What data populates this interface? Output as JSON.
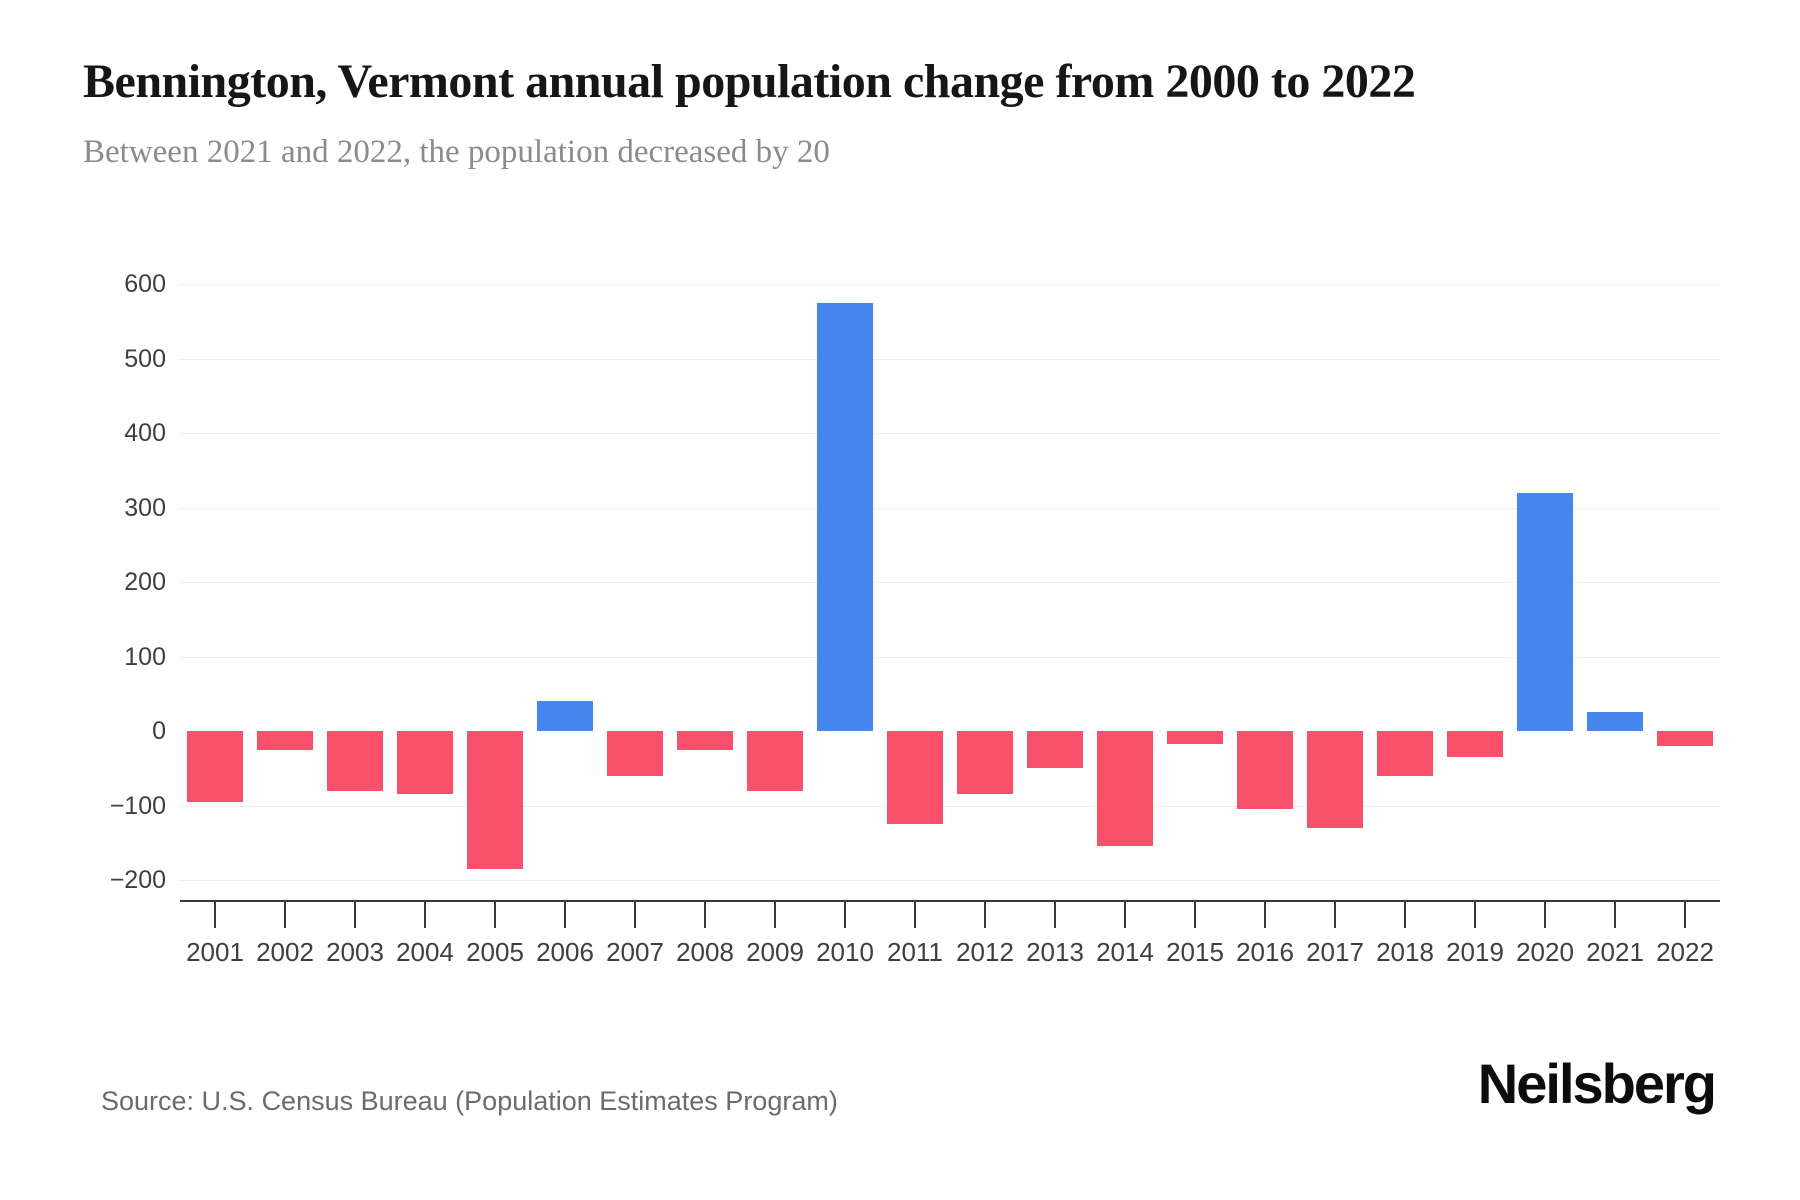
{
  "header": {
    "title": "Bennington, Vermont annual population change from 2000 to 2022",
    "subtitle": "Between 2021 and 2022, the population decreased by 20"
  },
  "footer": {
    "source": "Source: U.S. Census Bureau (Population Estimates Program)",
    "brand": "Neilsberg"
  },
  "colors": {
    "positive_bar": "#4587ee",
    "negative_bar": "#f9506c",
    "gridline": "#efefef",
    "axis": "#3a3a3a",
    "tick_label": "#3f3f3f",
    "title": "#161616",
    "subtitle": "#8b8b8b",
    "source": "#6b6b6b",
    "brand": "#0d0d0d",
    "background": "#ffffff"
  },
  "chart_data": {
    "type": "bar",
    "title": "Bennington, Vermont annual population change from 2000 to 2022",
    "subtitle": "Between 2021 and 2022, the population decreased by 20",
    "xlabel": "",
    "ylabel": "",
    "categories": [
      "2001",
      "2002",
      "2003",
      "2004",
      "2005",
      "2006",
      "2007",
      "2008",
      "2009",
      "2010",
      "2011",
      "2012",
      "2013",
      "2014",
      "2015",
      "2016",
      "2017",
      "2018",
      "2019",
      "2020",
      "2021",
      "2022"
    ],
    "values": [
      -95,
      -25,
      -80,
      -85,
      -185,
      40,
      -60,
      -25,
      -80,
      575,
      -125,
      -85,
      -50,
      -155,
      -18,
      -105,
      -130,
      -60,
      -35,
      320,
      25,
      -20
    ],
    "series": [
      {
        "name": "Annual population change",
        "values": [
          -95,
          -25,
          -80,
          -85,
          -185,
          40,
          -60,
          -25,
          -80,
          575,
          -125,
          -85,
          -50,
          -155,
          -18,
          -105,
          -130,
          -60,
          -35,
          320,
          25,
          -20
        ]
      }
    ],
    "ylim": [
      -200,
      600
    ],
    "yticks": [
      600,
      500,
      400,
      300,
      200,
      100,
      0,
      -100,
      -200
    ],
    "gridlines": "horizontal at every 100 except 0",
    "legend_position": "none",
    "color_rule": "positive bars blue, negative bars red"
  }
}
